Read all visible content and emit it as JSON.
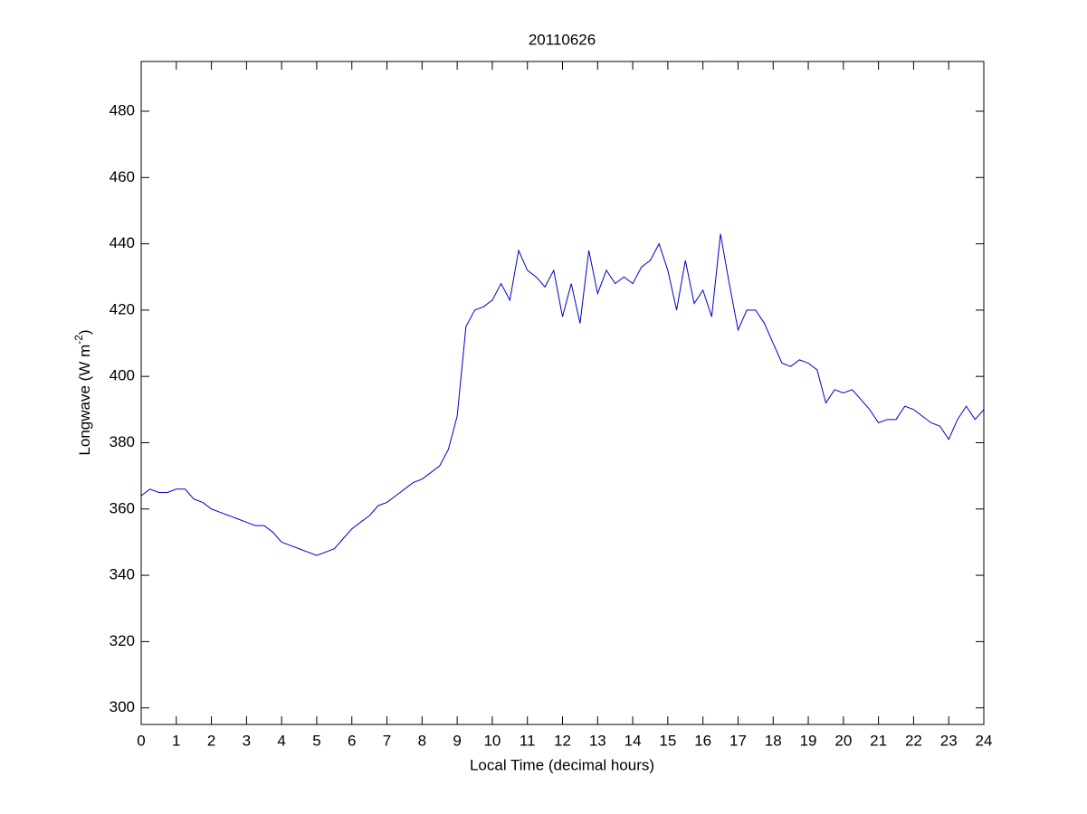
{
  "chart_data": {
    "type": "line",
    "title": "20110626",
    "x_label": "Local Time (decimal hours)",
    "y_label": "Longwave (W m",
    "y_label_sup": "-2",
    "y_label_end": ")",
    "x": [
      0,
      0.25,
      0.5,
      0.75,
      1,
      1.25,
      1.5,
      1.75,
      2,
      2.25,
      2.5,
      2.75,
      3,
      3.25,
      3.5,
      3.75,
      4,
      4.25,
      4.5,
      4.75,
      5,
      5.25,
      5.5,
      5.75,
      6,
      6.25,
      6.5,
      6.75,
      7,
      7.25,
      7.5,
      7.75,
      8,
      8.25,
      8.5,
      8.75,
      9,
      9.25,
      9.5,
      9.75,
      10,
      10.25,
      10.5,
      10.75,
      11,
      11.25,
      11.5,
      11.75,
      12,
      12.25,
      12.5,
      12.75,
      13,
      13.25,
      13.5,
      13.75,
      14,
      14.25,
      14.5,
      14.75,
      15,
      15.25,
      15.5,
      15.75,
      16,
      16.25,
      16.5,
      16.75,
      17,
      17.25,
      17.5,
      17.75,
      18,
      18.25,
      18.5,
      18.75,
      19,
      19.25,
      19.5,
      19.75,
      20,
      20.25,
      20.5,
      20.75,
      21,
      21.25,
      21.5,
      21.75,
      22,
      22.25,
      22.5,
      22.75,
      23,
      23.25,
      23.5,
      23.75,
      24
    ],
    "series": [
      {
        "name": "Longwave",
        "color": "#0000c8",
        "values": [
          364,
          366,
          365,
          365,
          366,
          366,
          363,
          362,
          360,
          359,
          358,
          357,
          356,
          355,
          355,
          353,
          350,
          349,
          348,
          347,
          346,
          347,
          348,
          351,
          354,
          356,
          358,
          361,
          362,
          364,
          366,
          368,
          369,
          371,
          373,
          378,
          388,
          415,
          420,
          421,
          423,
          428,
          423,
          438,
          432,
          430,
          427,
          432,
          418,
          428,
          416,
          438,
          425,
          432,
          428,
          430,
          428,
          433,
          435,
          440,
          432,
          420,
          435,
          422,
          426,
          418,
          443,
          428,
          414,
          420,
          420,
          416,
          410,
          404,
          403,
          405,
          404,
          402,
          392,
          396,
          395,
          396,
          393,
          390,
          386,
          387,
          387,
          391,
          390,
          388,
          386,
          385,
          381,
          387,
          391,
          387,
          390
        ]
      }
    ],
    "xlim": [
      0,
      24
    ],
    "xticks": [
      0,
      1,
      2,
      3,
      4,
      5,
      6,
      7,
      8,
      9,
      10,
      11,
      12,
      13,
      14,
      15,
      16,
      17,
      18,
      19,
      20,
      21,
      22,
      23,
      24
    ],
    "ylim": [
      295,
      495
    ],
    "yticks": [
      300,
      320,
      340,
      360,
      380,
      400,
      420,
      440,
      460,
      480
    ],
    "grid": false,
    "box": true
  }
}
